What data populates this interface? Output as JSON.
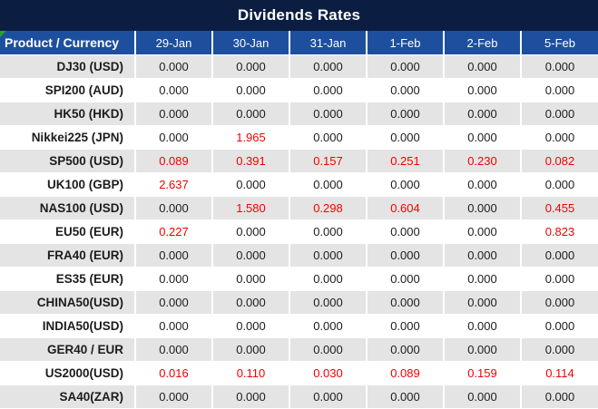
{
  "title": "Dividends Rates",
  "colors": {
    "title_bar_bg": "#0b1e42",
    "header_bg": "#1d4f9e",
    "header_text": "#ffffff",
    "row_alt_bg": "#e4e4e4",
    "row_bg": "#ffffff",
    "text_dark": "#1c1c1c",
    "value_red": "#f40000",
    "corner_triangle_green": "#28a228"
  },
  "table": {
    "product_header": "Product / Currency",
    "date_headers": [
      "29-Jan",
      "30-Jan",
      "31-Jan",
      "1-Feb",
      "2-Feb",
      "5-Feb"
    ],
    "rows": [
      {
        "product": "DJ30 (USD)",
        "values": [
          "0.000",
          "0.000",
          "0.000",
          "0.000",
          "0.000",
          "0.000"
        ],
        "red": [
          false,
          false,
          false,
          false,
          false,
          false
        ]
      },
      {
        "product": "SPI200 (AUD)",
        "values": [
          "0.000",
          "0.000",
          "0.000",
          "0.000",
          "0.000",
          "0.000"
        ],
        "red": [
          false,
          false,
          false,
          false,
          false,
          false
        ]
      },
      {
        "product": "HK50 (HKD)",
        "values": [
          "0.000",
          "0.000",
          "0.000",
          "0.000",
          "0.000",
          "0.000"
        ],
        "red": [
          false,
          false,
          false,
          false,
          false,
          false
        ]
      },
      {
        "product": "Nikkei225 (JPN)",
        "values": [
          "0.000",
          "1.965",
          "0.000",
          "0.000",
          "0.000",
          "0.000"
        ],
        "red": [
          false,
          true,
          false,
          false,
          false,
          false
        ]
      },
      {
        "product": "SP500 (USD)",
        "values": [
          "0.089",
          "0.391",
          "0.157",
          "0.251",
          "0.230",
          "0.082"
        ],
        "red": [
          true,
          true,
          true,
          true,
          true,
          true
        ]
      },
      {
        "product": "UK100 (GBP)",
        "values": [
          "2.637",
          "0.000",
          "0.000",
          "0.000",
          "0.000",
          "0.000"
        ],
        "red": [
          true,
          false,
          false,
          false,
          false,
          false
        ]
      },
      {
        "product": "NAS100 (USD)",
        "values": [
          "0.000",
          "1.580",
          "0.298",
          "0.604",
          "0.000",
          "0.455"
        ],
        "red": [
          false,
          true,
          true,
          true,
          false,
          true
        ]
      },
      {
        "product": "EU50 (EUR)",
        "values": [
          "0.227",
          "0.000",
          "0.000",
          "0.000",
          "0.000",
          "0.823"
        ],
        "red": [
          true,
          false,
          false,
          false,
          false,
          true
        ]
      },
      {
        "product": "FRA40 (EUR)",
        "values": [
          "0.000",
          "0.000",
          "0.000",
          "0.000",
          "0.000",
          "0.000"
        ],
        "red": [
          false,
          false,
          false,
          false,
          false,
          false
        ]
      },
      {
        "product": "ES35 (EUR)",
        "values": [
          "0.000",
          "0.000",
          "0.000",
          "0.000",
          "0.000",
          "0.000"
        ],
        "red": [
          false,
          false,
          false,
          false,
          false,
          false
        ]
      },
      {
        "product": "CHINA50(USD)",
        "values": [
          "0.000",
          "0.000",
          "0.000",
          "0.000",
          "0.000",
          "0.000"
        ],
        "red": [
          false,
          false,
          false,
          false,
          false,
          false
        ]
      },
      {
        "product": "INDIA50(USD)",
        "values": [
          "0.000",
          "0.000",
          "0.000",
          "0.000",
          "0.000",
          "0.000"
        ],
        "red": [
          false,
          false,
          false,
          false,
          false,
          false
        ]
      },
      {
        "product": "GER40 / EUR",
        "values": [
          "0.000",
          "0.000",
          "0.000",
          "0.000",
          "0.000",
          "0.000"
        ],
        "red": [
          false,
          false,
          false,
          false,
          false,
          false
        ]
      },
      {
        "product": "US2000(USD)",
        "values": [
          "0.016",
          "0.110",
          "0.030",
          "0.089",
          "0.159",
          "0.114"
        ],
        "red": [
          true,
          true,
          true,
          true,
          true,
          true
        ]
      },
      {
        "product": "SA40(ZAR)",
        "values": [
          "0.000",
          "0.000",
          "0.000",
          "0.000",
          "0.000",
          "0.000"
        ],
        "red": [
          false,
          false,
          false,
          false,
          false,
          false
        ]
      }
    ]
  },
  "chart_data": {
    "type": "table",
    "title": "Dividends Rates",
    "columns": [
      "Product / Currency",
      "29-Jan",
      "30-Jan",
      "31-Jan",
      "1-Feb",
      "2-Feb",
      "5-Feb"
    ],
    "rows": [
      [
        "DJ30 (USD)",
        0.0,
        0.0,
        0.0,
        0.0,
        0.0,
        0.0
      ],
      [
        "SPI200 (AUD)",
        0.0,
        0.0,
        0.0,
        0.0,
        0.0,
        0.0
      ],
      [
        "HK50 (HKD)",
        0.0,
        0.0,
        0.0,
        0.0,
        0.0,
        0.0
      ],
      [
        "Nikkei225 (JPN)",
        0.0,
        1.965,
        0.0,
        0.0,
        0.0,
        0.0
      ],
      [
        "SP500 (USD)",
        0.089,
        0.391,
        0.157,
        0.251,
        0.23,
        0.082
      ],
      [
        "UK100 (GBP)",
        2.637,
        0.0,
        0.0,
        0.0,
        0.0,
        0.0
      ],
      [
        "NAS100 (USD)",
        0.0,
        1.58,
        0.298,
        0.604,
        0.0,
        0.455
      ],
      [
        "EU50 (EUR)",
        0.227,
        0.0,
        0.0,
        0.0,
        0.0,
        0.823
      ],
      [
        "FRA40 (EUR)",
        0.0,
        0.0,
        0.0,
        0.0,
        0.0,
        0.0
      ],
      [
        "ES35 (EUR)",
        0.0,
        0.0,
        0.0,
        0.0,
        0.0,
        0.0
      ],
      [
        "CHINA50(USD)",
        0.0,
        0.0,
        0.0,
        0.0,
        0.0,
        0.0
      ],
      [
        "INDIA50(USD)",
        0.0,
        0.0,
        0.0,
        0.0,
        0.0,
        0.0
      ],
      [
        "GER40 / EUR",
        0.0,
        0.0,
        0.0,
        0.0,
        0.0,
        0.0
      ],
      [
        "US2000(USD)",
        0.016,
        0.11,
        0.03,
        0.089,
        0.159,
        0.114
      ],
      [
        "SA40(ZAR)",
        0.0,
        0.0,
        0.0,
        0.0,
        0.0,
        0.0
      ]
    ],
    "highlight_note": "non-zero values rendered in red"
  }
}
